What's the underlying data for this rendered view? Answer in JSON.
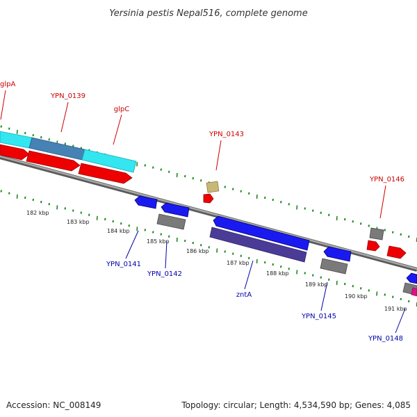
{
  "title": "Yersinia pestis Nepal516, complete genome",
  "footer": {
    "accession": "Accession: NC_008149",
    "summary": "Topology: circular; Length: 4,534,590 bp; Genes: 4,085"
  },
  "colors": {
    "forward_label": "#cc0000",
    "reverse_label": "#0000aa",
    "ticks": "#1a8a1a",
    "backbone": "#8c8c8c",
    "cyan": "#33e6f0",
    "steelblue": "#4682b4",
    "red": "#ee0000",
    "blue": "#1a1af0",
    "gray": "#7a7a7a",
    "navy": "#4a3c96",
    "khaki": "#c8b878",
    "magenta": "#e0108a"
  },
  "kbp_labels": [
    "182 kbp",
    "183 kbp",
    "184 kbp",
    "185 kbp",
    "186 kbp",
    "187 kbp",
    "188 kbp",
    "189 kbp",
    "190 kbp",
    "191 kbp"
  ],
  "gene_labels": {
    "forward": [
      "glpA",
      "YPN_0139",
      "glpC",
      "YPN_0143",
      "YPN_0146"
    ],
    "reverse": [
      "YPN_0141",
      "YPN_0142",
      "zntA",
      "YPN_0145",
      "YPN_0148"
    ]
  }
}
